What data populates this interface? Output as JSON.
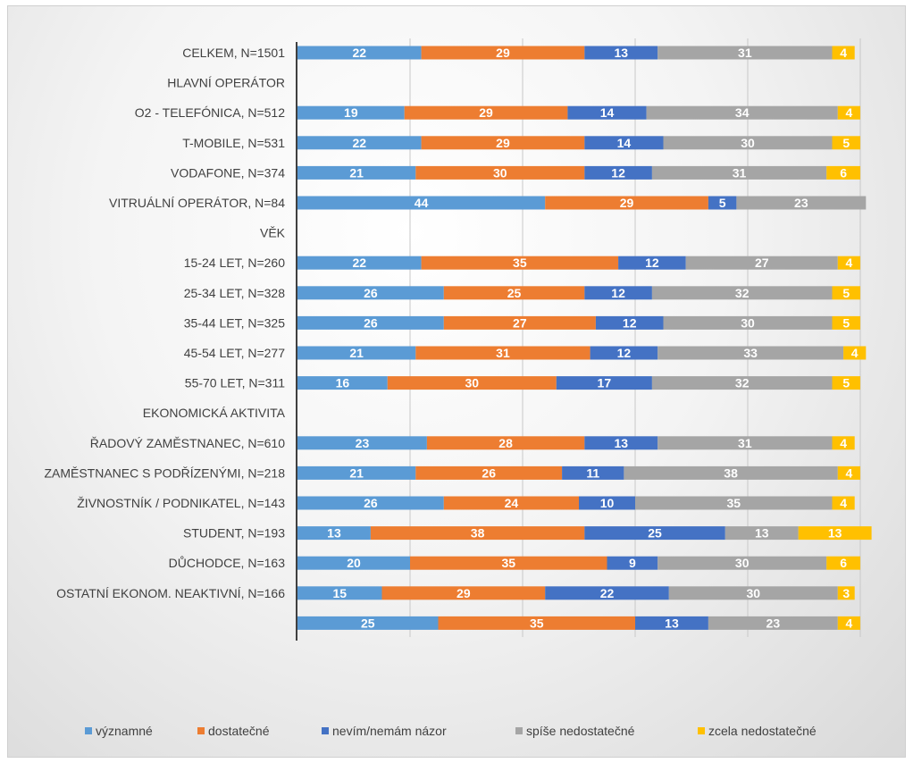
{
  "chart_data": {
    "type": "bar",
    "orientation": "horizontal",
    "stacked": "percent",
    "title": "",
    "xlabel": "",
    "ylabel": "",
    "xlim": [
      0,
      100
    ],
    "grid": true,
    "legend_position": "bottom",
    "categories": [
      "CELKEM, N=1501",
      "HLAVNÍ OPERÁTOR",
      "O2 - TELEFÓNICA, N=512",
      "T-MOBILE, N=531",
      "VODAFONE, N=374",
      "VITRUÁLNÍ OPERÁTOR, N=84",
      "VĚK",
      "15-24 LET, N=260",
      "25-34 LET, N=328",
      "35-44 LET, N=325",
      "45-54 LET, N=277",
      "55-70 LET, N=311",
      "EKONOMICKÁ AKTIVITA",
      "ŘADOVÝ ZAMĚSTNANEC, N=610",
      "ZAMĚSTNANEC S PODŘÍZENÝMI, N=218",
      "ŽIVNOSTNÍK / PODNIKATEL, N=143",
      "STUDENT, N=193",
      "DŮCHODCE, N=163",
      "OSTATNÍ EKONOM. NEAKTIVNÍ, N=166",
      ""
    ],
    "series": [
      {
        "name": "významné",
        "color": "#5B9BD5",
        "values": [
          22,
          null,
          19,
          22,
          21,
          44,
          null,
          22,
          26,
          26,
          21,
          16,
          null,
          23,
          21,
          26,
          13,
          20,
          15,
          25
        ]
      },
      {
        "name": "dostatečné",
        "color": "#ED7D31",
        "values": [
          29,
          null,
          29,
          29,
          30,
          29,
          null,
          35,
          25,
          27,
          31,
          30,
          null,
          28,
          26,
          24,
          38,
          35,
          29,
          35
        ]
      },
      {
        "name": "nevím/nemám názor",
        "color": "#4472C4",
        "values": [
          13,
          null,
          14,
          14,
          12,
          5,
          null,
          12,
          12,
          12,
          12,
          17,
          null,
          13,
          11,
          10,
          25,
          9,
          22,
          13
        ]
      },
      {
        "name": "spíše nedostatečné",
        "color": "#A5A5A5",
        "values": [
          31,
          null,
          34,
          30,
          31,
          23,
          null,
          27,
          32,
          30,
          33,
          32,
          null,
          31,
          38,
          35,
          13,
          30,
          30,
          23
        ]
      },
      {
        "name": "zcela nedostatečné",
        "color": "#FFC000",
        "values": [
          4,
          null,
          4,
          5,
          6,
          0,
          null,
          4,
          5,
          5,
          4,
          5,
          null,
          4,
          4,
          4,
          13,
          6,
          3,
          4
        ]
      }
    ]
  }
}
